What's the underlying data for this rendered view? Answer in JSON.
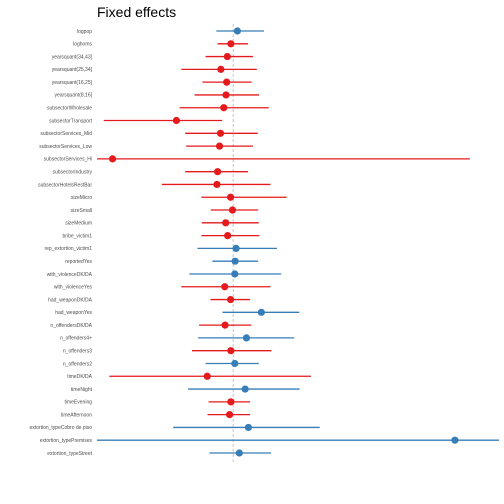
{
  "chart_data": {
    "type": "forest",
    "title": "Fixed effects",
    "xlabel": "",
    "ylabel": "",
    "x_range": [
      -4.2,
      8.2
    ],
    "reference_line": 0,
    "grid": false,
    "colors": {
      "positive": "#377eb8",
      "negative": "#e41a1c",
      "reference": "#bdbdbd"
    },
    "x_tick_labels": [],
    "rows": [
      {
        "label": "logpop",
        "estimate": 0.13,
        "lower": -0.52,
        "upper": 0.95,
        "sign": "positive"
      },
      {
        "label": "loghoms",
        "estimate": -0.07,
        "lower": -0.48,
        "upper": 0.46,
        "sign": "negative"
      },
      {
        "label": "yearsquant(34,43]",
        "estimate": -0.18,
        "lower": -0.85,
        "upper": 0.61,
        "sign": "negative"
      },
      {
        "label": "yearsquant(25,34]",
        "estimate": -0.38,
        "lower": -1.6,
        "upper": 0.73,
        "sign": "negative"
      },
      {
        "label": "yearsquant(16,25]",
        "estimate": -0.2,
        "lower": -0.95,
        "upper": 0.57,
        "sign": "negative"
      },
      {
        "label": "yearsquant(8,16]",
        "estimate": -0.22,
        "lower": -1.19,
        "upper": 0.8,
        "sign": "negative"
      },
      {
        "label": "subsectorWholesale",
        "estimate": -0.29,
        "lower": -1.65,
        "upper": 1.1,
        "sign": "negative"
      },
      {
        "label": "subsectorTransport",
        "estimate": -1.75,
        "lower": -3.99,
        "upper": -0.34,
        "sign": "negative"
      },
      {
        "label": "subsectorServices_Mid",
        "estimate": -0.39,
        "lower": -1.48,
        "upper": 0.76,
        "sign": "negative"
      },
      {
        "label": "subsectorServices_Low",
        "estimate": -0.42,
        "lower": -1.45,
        "upper": 0.61,
        "sign": "negative"
      },
      {
        "label": "subsectorServices_Hi",
        "estimate": -3.72,
        "lower": -4.2,
        "upper": 7.3,
        "sign": "negative"
      },
      {
        "label": "subsectorIndustry",
        "estimate": -0.48,
        "lower": -1.48,
        "upper": 0.46,
        "sign": "negative"
      },
      {
        "label": "subsectorHotelsRestBar",
        "estimate": -0.5,
        "lower": -2.2,
        "upper": 1.15,
        "sign": "negative"
      },
      {
        "label": "sizeMicro",
        "estimate": -0.08,
        "lower": -0.98,
        "upper": 1.65,
        "sign": "negative"
      },
      {
        "label": "sizeSmall",
        "estimate": -0.02,
        "lower": -0.69,
        "upper": 0.77,
        "sign": "negative"
      },
      {
        "label": "sizeMedium",
        "estimate": -0.23,
        "lower": -0.97,
        "upper": 0.79,
        "sign": "negative"
      },
      {
        "label": "bribe_victim1",
        "estimate": -0.17,
        "lower": -0.98,
        "upper": 0.81,
        "sign": "negative"
      },
      {
        "label": "rep_extortion_victim1",
        "estimate": 0.09,
        "lower": -1.1,
        "upper": 1.35,
        "sign": "positive"
      },
      {
        "label": "reportedYes",
        "estimate": 0.06,
        "lower": -0.64,
        "upper": 0.77,
        "sign": "positive"
      },
      {
        "label": "with_violenceDK/DA",
        "estimate": 0.05,
        "lower": -1.35,
        "upper": 1.48,
        "sign": "positive"
      },
      {
        "label": "with_violenceYes",
        "estimate": -0.26,
        "lower": -1.6,
        "upper": 1.15,
        "sign": "negative"
      },
      {
        "label": "had_weaponDK/DA",
        "estimate": -0.08,
        "lower": -0.7,
        "upper": 0.52,
        "sign": "negative"
      },
      {
        "label": "had_weaponYes",
        "estimate": 0.87,
        "lower": -0.33,
        "upper": 2.04,
        "sign": "positive"
      },
      {
        "label": "n_offendersDK/DA",
        "estimate": -0.25,
        "lower": -1.05,
        "upper": 0.56,
        "sign": "negative"
      },
      {
        "label": "n_offenders4+",
        "estimate": 0.41,
        "lower": -1.08,
        "upper": 1.88,
        "sign": "positive"
      },
      {
        "label": "n_offenders3",
        "estimate": -0.07,
        "lower": -1.27,
        "upper": 1.18,
        "sign": "negative"
      },
      {
        "label": "n_offenders2",
        "estimate": 0.05,
        "lower": -0.85,
        "upper": 0.79,
        "sign": "positive"
      },
      {
        "label": "timeDK/DA",
        "estimate": -0.8,
        "lower": -3.82,
        "upper": 2.4,
        "sign": "negative"
      },
      {
        "label": "timeNight",
        "estimate": 0.37,
        "lower": -1.39,
        "upper": 2.05,
        "sign": "positive"
      },
      {
        "label": "timeEvening",
        "estimate": -0.07,
        "lower": -0.76,
        "upper": 0.52,
        "sign": "negative"
      },
      {
        "label": "timeAfternoon",
        "estimate": -0.11,
        "lower": -0.79,
        "upper": 0.52,
        "sign": "negative"
      },
      {
        "label": "extortion_typeCobro de piso",
        "estimate": 0.47,
        "lower": -1.85,
        "upper": 2.67,
        "sign": "positive"
      },
      {
        "label": "extortion_typePremises",
        "estimate": 6.84,
        "lower": -4.2,
        "upper": 8.2,
        "sign": "positive"
      },
      {
        "label": "extortion_typeStreet",
        "estimate": 0.19,
        "lower": -0.73,
        "upper": 1.17,
        "sign": "positive"
      }
    ]
  }
}
